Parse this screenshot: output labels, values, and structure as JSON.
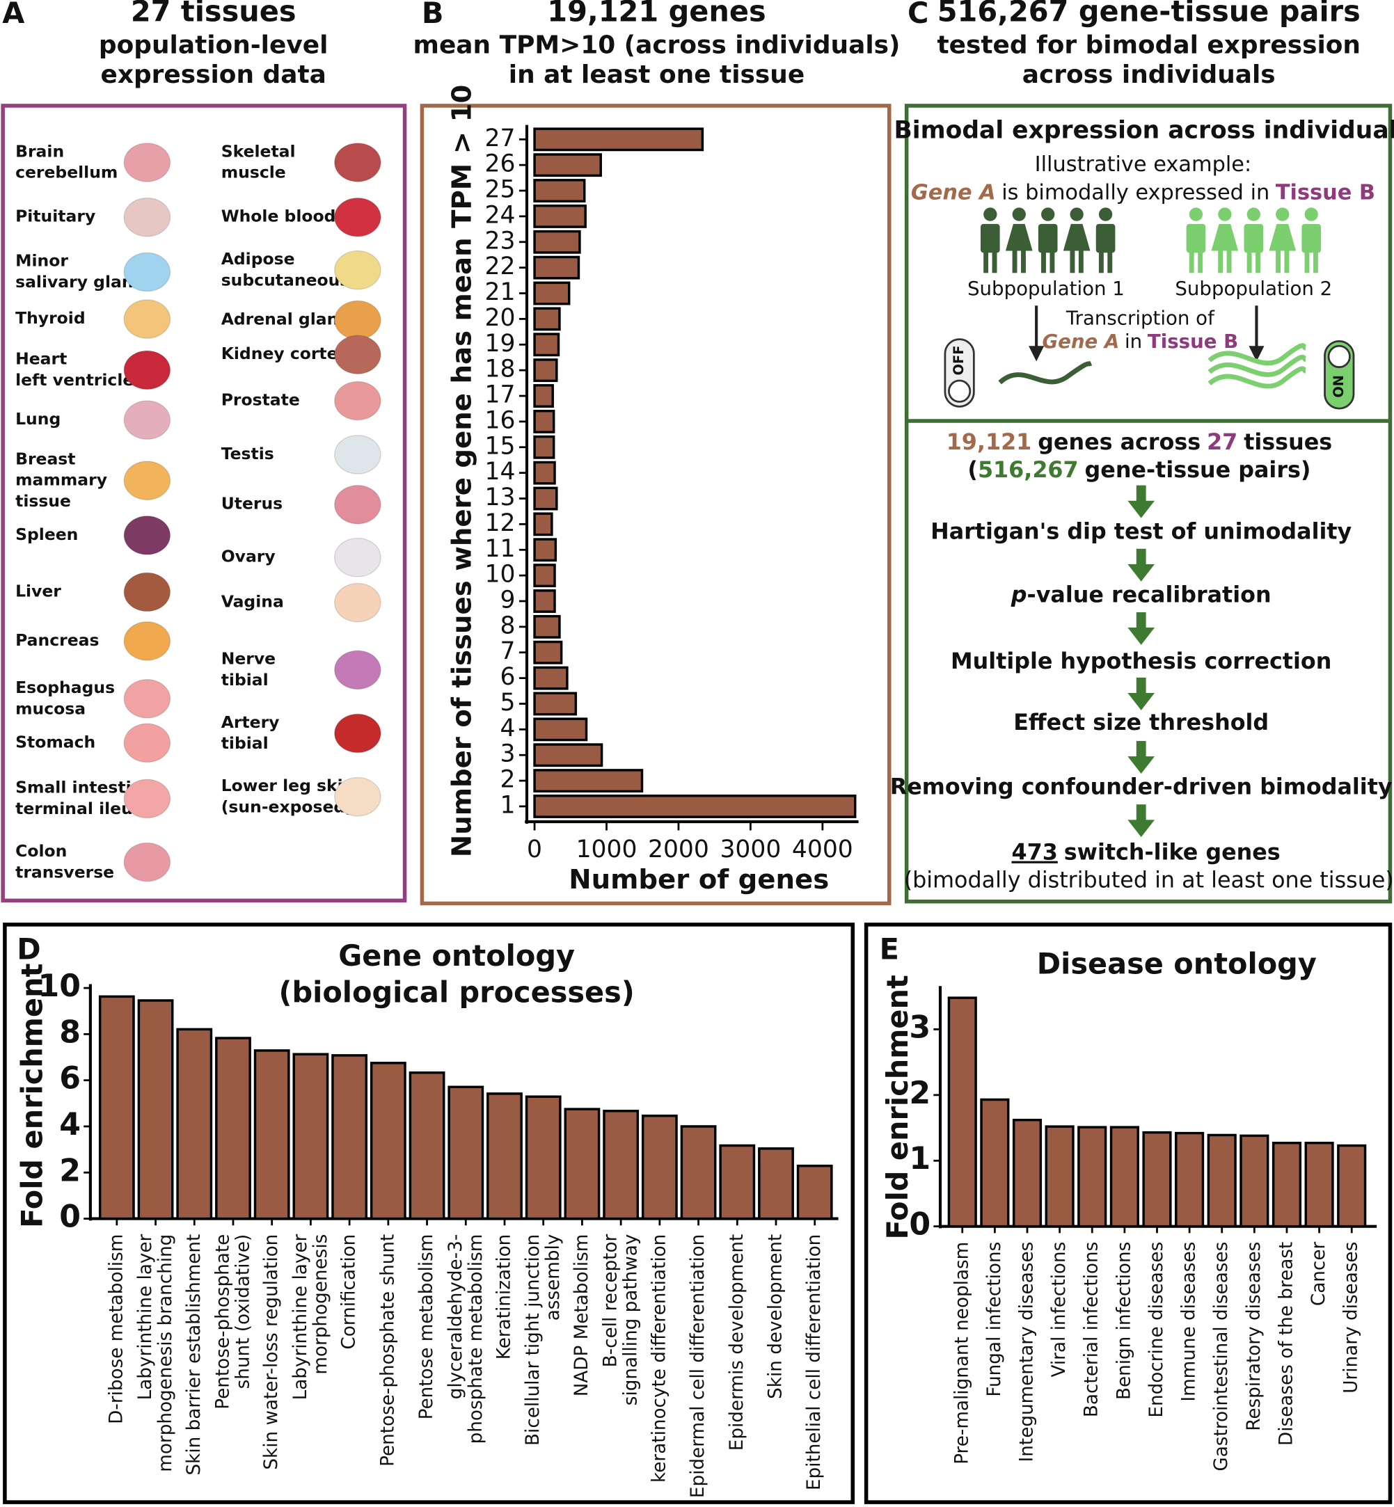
{
  "panel_labels": [
    "A",
    "B",
    "C",
    "D",
    "E"
  ],
  "panel_a": {
    "title": "27 tissues",
    "subtitle": [
      "population-level",
      "expression data"
    ],
    "tissues": [
      "Brain\ncerebellum",
      "Pituitary",
      "Minor\nsalivary gland",
      "Thyroid",
      "Heart\nleft ventricle",
      "Lung",
      "Breast\nmammary\ntissue",
      "Spleen",
      "Liver",
      "Pancreas",
      "Esophagus\nmucosa",
      "Stomach",
      "Small intestine\nterminal ileum",
      "Colon\ntransverse",
      "Skeletal\nmuscle",
      "Whole blood",
      "Adipose\nsubcutaneous",
      "Adrenal gland",
      "Kidney cortex",
      "Prostate",
      "Testis",
      "Uterus",
      "Ovary",
      "Vagina",
      "Nerve\ntibial",
      "Artery\ntibial",
      "Lower leg skin\n(sun-exposed)"
    ]
  },
  "panel_c": {
    "title": "516,267 gene-tissue pairs",
    "subtitle": [
      "tested for bimodal expression",
      "across individuals"
    ],
    "box_title": "Bimodal expression across individuals",
    "example_label": "Illustrative example:",
    "example": [
      "Gene A",
      "is bimodally expressed in",
      "Tissue B"
    ],
    "subpopulations": [
      "Subpopulation 1",
      "Subpopulation 2"
    ],
    "transcription": [
      "Transcription of",
      "Gene A",
      "in",
      "Tissue B"
    ],
    "switch": [
      "OFF",
      "ON"
    ],
    "pipeline_head": [
      "19,121",
      "genes across",
      "27",
      "tissues"
    ],
    "pipeline_head2": [
      "(",
      "516,267",
      "gene-tissue pairs)"
    ],
    "steps": [
      [
        "Hartigan's dip test of unimodality"
      ],
      [
        "p",
        "-value recalibration"
      ],
      [
        "Multiple hypothesis correction"
      ],
      [
        "Effect size threshold"
      ],
      [
        "Removing confounder-driven bimodality"
      ]
    ],
    "result": [
      "473",
      "switch-like genes"
    ],
    "result_note": "(bimodally distributed in at least one tissue)"
  },
  "chart_data": [
    {
      "type": "bar",
      "horizontal": true,
      "title": "19,121 genes",
      "subtitle": [
        "mean TPM>10 (across individuals)",
        "in at least one tissue"
      ],
      "x_label": "Number of genes",
      "y_label": "Number of tissues where gene has mean TPM > 10",
      "categories": [
        "1",
        "2",
        "3",
        "4",
        "5",
        "6",
        "7",
        "8",
        "9",
        "10",
        "11",
        "12",
        "13",
        "14",
        "15",
        "16",
        "17",
        "18",
        "19",
        "20",
        "21",
        "22",
        "23",
        "24",
        "25",
        "26",
        "27"
      ],
      "values": [
        4453,
        1493,
        933,
        720,
        573,
        453,
        373,
        347,
        280,
        280,
        293,
        240,
        307,
        280,
        267,
        267,
        253,
        307,
        333,
        347,
        480,
        613,
        627,
        707,
        693,
        920,
        2333
      ],
      "color": "#9a5b45",
      "xlim": [
        0,
        4500
      ],
      "xticks": [
        0,
        1000,
        2000,
        3000,
        4000
      ]
    },
    {
      "type": "bar",
      "title": "Gene ontology\n(biological processes)",
      "y_label": "Fold enrichment",
      "categories": [
        "D-ribose metabolism",
        "Labyrinthine layer\nmorphogenesis branching",
        "Skin barrier establishment",
        "Pentose-phosphate\nshunt (oxidative)",
        "Skin water-loss regulation",
        "Labyrinthine layer\nmorphogenesis",
        "Cornification",
        "Pentose-phosphate shunt",
        "Pentose metabolism",
        "glyceraldehyde-3-\nphosphate metabolism",
        "Keratinization",
        "Bicellular tight junction\nassembly",
        "NADP Metabolism",
        "B-cell receptor\nsignalling pathway",
        "keratinocyte differentiation",
        "Epidermal cell differentiation",
        "Epidermis development",
        "Skin development",
        "Epithelial cell differentiation"
      ],
      "values": [
        9.63,
        9.46,
        8.21,
        7.83,
        7.29,
        7.13,
        7.08,
        6.75,
        6.33,
        5.71,
        5.42,
        5.29,
        4.75,
        4.67,
        4.46,
        4.0,
        3.17,
        3.04,
        2.29
      ],
      "color": "#9a5b45",
      "ylim": [
        0,
        10
      ],
      "yticks": [
        0,
        2,
        4,
        6,
        8,
        10
      ]
    },
    {
      "type": "bar",
      "title": "Disease ontology",
      "y_label": "Fold enrichment",
      "categories": [
        "Pre-malignant neoplasm",
        "Fungal infections",
        "Integumentary diseases",
        "Viral infections",
        "Bacterial infections",
        "Benign infections",
        "Endocrine diseases",
        "Immune diseases",
        "Gastrointestinal diseases",
        "Respiratory diseases",
        "Diseases of the breast",
        "Cancer",
        "Urinary diseases"
      ],
      "values": [
        3.48,
        1.93,
        1.62,
        1.52,
        1.51,
        1.51,
        1.43,
        1.42,
        1.39,
        1.38,
        1.27,
        1.27,
        1.23
      ],
      "color": "#9a5b45",
      "ylim": [
        0,
        3.6
      ],
      "yticks": [
        0,
        1,
        2,
        3
      ]
    }
  ]
}
